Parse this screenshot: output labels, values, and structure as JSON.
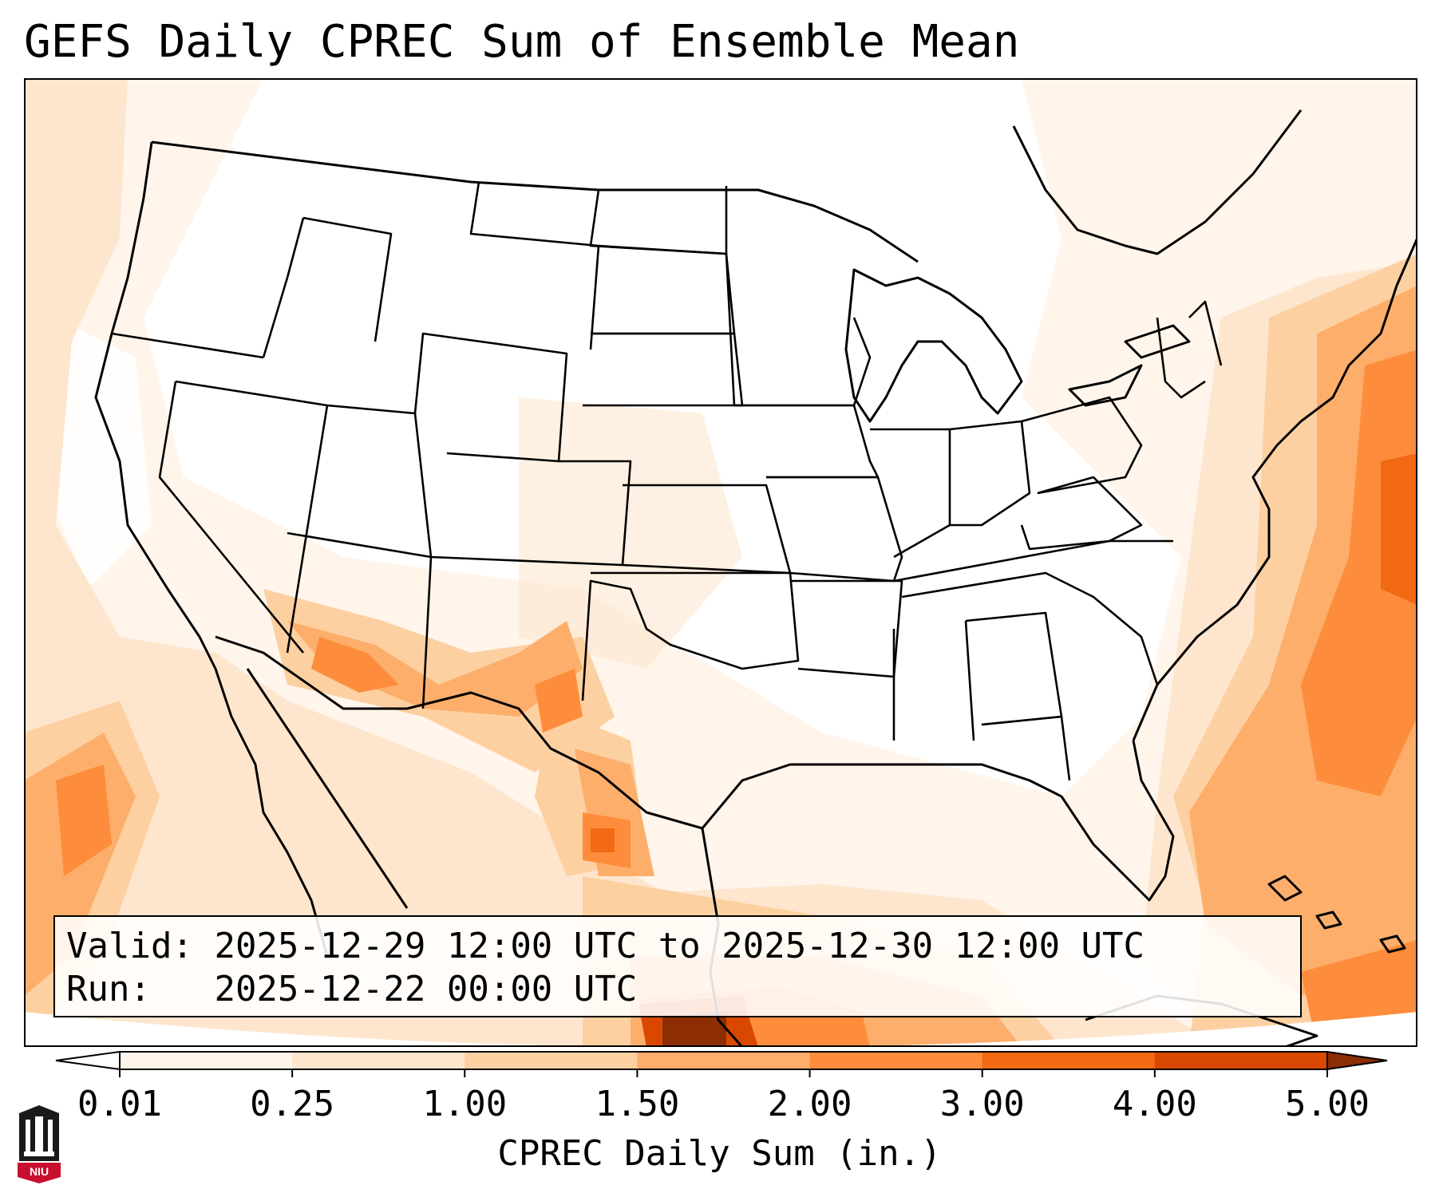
{
  "title": "GEFS Daily CPREC Sum of Ensemble Mean",
  "info": {
    "valid_label": "Valid:",
    "valid_text": "2025-12-29 12:00 UTC to 2025-12-30 12:00 UTC",
    "run_label": "Run:",
    "run_text": "2025-12-22 00:00 UTC"
  },
  "colorbar": {
    "label": "CPREC Daily Sum (in.)",
    "ticks": [
      "0.01",
      "0.25",
      "1.00",
      "1.50",
      "2.00",
      "3.00",
      "4.00",
      "5.00"
    ],
    "colors": [
      "#fff5eb",
      "#fee6ce",
      "#fdd0a2",
      "#fdae6b",
      "#fd8d3c",
      "#f16913",
      "#d94801",
      "#8c2d04"
    ]
  },
  "logo": {
    "text": "NIU",
    "accent": "#c8102e"
  },
  "colors": {
    "land_bg": "#fff5eb",
    "coast": "#000000"
  }
}
